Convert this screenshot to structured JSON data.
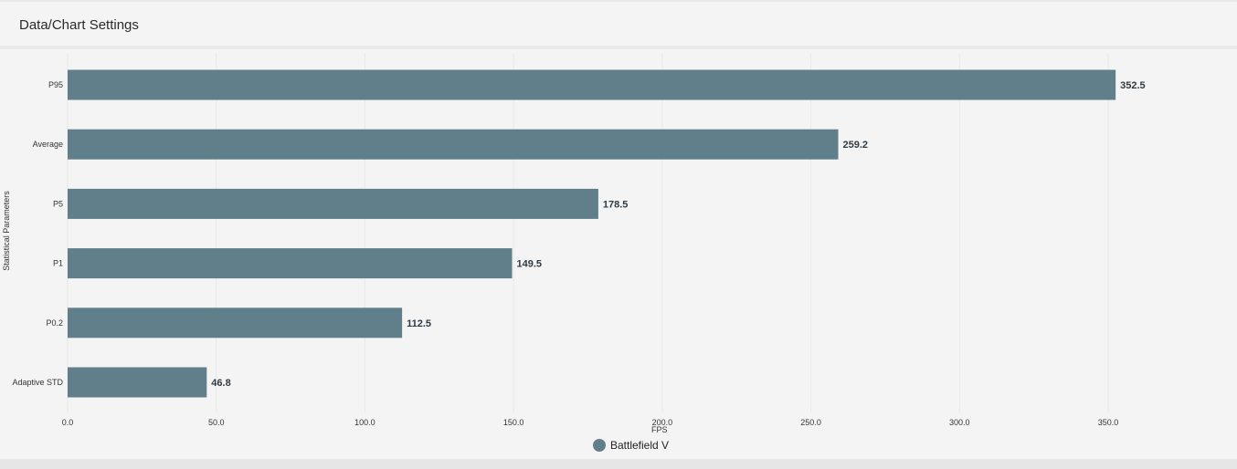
{
  "header": {
    "title": "Data/Chart Settings"
  },
  "chart_data": {
    "type": "bar",
    "orientation": "horizontal",
    "categories": [
      "P95",
      "Average",
      "P5",
      "P1",
      "P0.2",
      "Adaptive STD"
    ],
    "series": [
      {
        "name": "Battlefield V",
        "values": [
          352.5,
          259.2,
          178.5,
          149.5,
          112.5,
          46.8
        ],
        "color": "#607f8a"
      }
    ],
    "data_labels": [
      "352.5",
      "259.2",
      "178.5",
      "149.5",
      "112.5",
      "46.8"
    ],
    "xlabel": "FPS",
    "ylabel": "Statistical Parameters",
    "xlim": [
      0,
      350
    ],
    "x_ticks": [
      "0.0",
      "50.0",
      "100.0",
      "150.0",
      "200.0",
      "250.0",
      "300.0",
      "350.0"
    ],
    "x_tick_values": [
      0,
      50,
      100,
      150,
      200,
      250,
      300,
      350
    ],
    "grid": "vertical",
    "legend": "bottom-center"
  }
}
